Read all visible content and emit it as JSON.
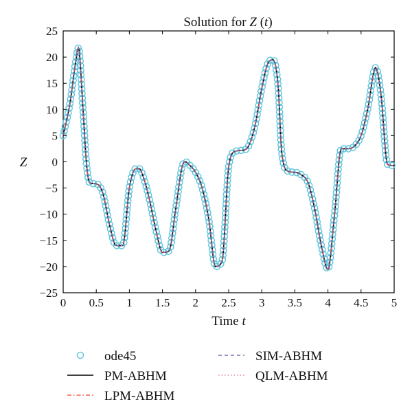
{
  "chart_data": {
    "type": "line",
    "title": "Solution for Z (t)",
    "title_prefix": "Solution for ",
    "title_var": "Z",
    "title_paren_open": " (",
    "title_arg": "t",
    "title_paren_close": ")",
    "xlabel": "Time t",
    "xlabel_prefix": "Time ",
    "xlabel_var": "t",
    "ylabel": "Z",
    "xlim": [
      0,
      5
    ],
    "ylim": [
      -25,
      25
    ],
    "xticks": [
      "0",
      "0.5",
      "1",
      "1.5",
      "2",
      "2.5",
      "3",
      "3.5",
      "4",
      "4.5",
      "5"
    ],
    "yticks": [
      "25",
      "20",
      "15",
      "10",
      "5",
      "0",
      "−5",
      "−10",
      "−15",
      "−20",
      "−25"
    ],
    "grid": false,
    "legend_position": "bottom",
    "key_points": {
      "t": [
        0,
        0.1,
        0.2,
        0.23,
        0.3,
        0.35,
        0.4,
        0.5,
        0.6,
        0.7,
        0.8,
        0.9,
        1.0,
        1.1,
        1.15,
        1.2,
        1.3,
        1.4,
        1.5,
        1.6,
        1.7,
        1.8,
        1.85,
        1.9,
        2.0,
        2.1,
        2.2,
        2.3,
        2.4,
        2.5,
        2.6,
        2.7,
        2.8,
        2.9,
        3.0,
        3.1,
        3.17,
        3.25,
        3.3,
        3.4,
        3.5,
        3.6,
        3.7,
        3.8,
        3.9,
        4.0,
        4.1,
        4.2,
        4.3,
        4.4,
        4.5,
        4.6,
        4.72,
        4.8,
        4.9,
        5.0
      ],
      "z": [
        5,
        11,
        20,
        21.8,
        10,
        0,
        -4,
        -4.2,
        -6,
        -12,
        -16,
        -16,
        -5,
        -1.3,
        -1.3,
        -2.5,
        -7,
        -13,
        -17.3,
        -17,
        -9,
        -0.8,
        0,
        -0.5,
        -2,
        -5,
        -11,
        -20,
        -19,
        -1,
        2,
        2.2,
        3,
        7,
        14,
        19,
        19.5,
        14,
        2,
        -1.8,
        -2,
        -2.5,
        -4,
        -9,
        -16,
        -20.5,
        -10,
        2.5,
        2.5,
        3,
        5,
        10,
        18,
        13,
        -0.5,
        -0.7
      ]
    },
    "series": [
      {
        "name": "ode45",
        "color": "#5ec4dc",
        "style": "circle-markers"
      },
      {
        "name": "PM-ABHM",
        "color": "#000000",
        "style": "solid"
      },
      {
        "name": "LPM-ABHM",
        "color": "#e8402a",
        "style": "dash-dot"
      },
      {
        "name": "SIM-ABHM",
        "color": "#5a5aa8",
        "style": "dashed"
      },
      {
        "name": "QLM-ABHM",
        "color": "#d9708c",
        "style": "dotted"
      }
    ]
  }
}
